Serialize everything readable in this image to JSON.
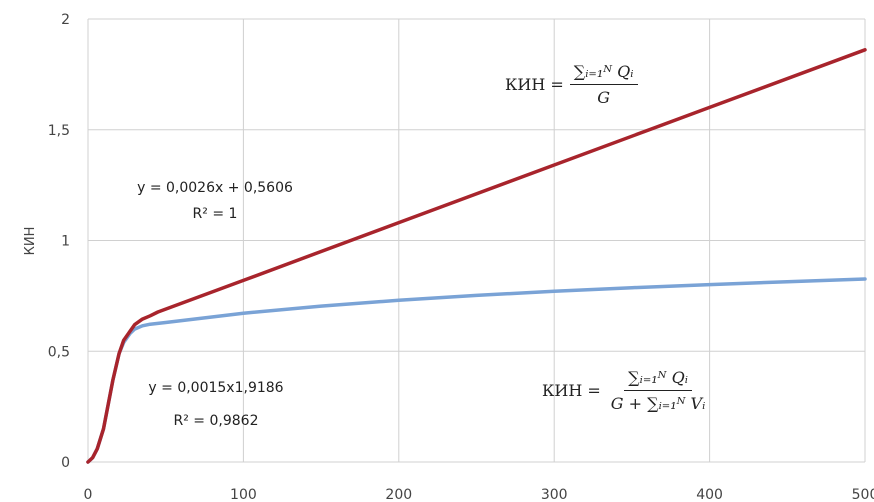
{
  "chart_data": {
    "type": "line",
    "ylabel": "КИН",
    "xlabel": "",
    "xlim": [
      0,
      500
    ],
    "ylim": [
      0,
      2
    ],
    "x_ticks": [
      "0",
      "100",
      "200",
      "300",
      "400",
      "500"
    ],
    "y_ticks": [
      "0",
      "0,5",
      "1",
      "1,5",
      "2"
    ],
    "grid": true,
    "series": [
      {
        "color": "#a8242c",
        "x": [
          0,
          3,
          6,
          10,
          13,
          16,
          20,
          23,
          27,
          30,
          35,
          40,
          45,
          100,
          200,
          300,
          400,
          500
        ],
        "y": [
          0,
          0.02,
          0.06,
          0.15,
          0.26,
          0.37,
          0.49,
          0.55,
          0.59,
          0.62,
          0.645,
          0.66,
          0.677,
          0.82,
          1.081,
          1.341,
          1.601,
          1.861
        ]
      },
      {
        "color": "#7aa3d6",
        "x": [
          0,
          3,
          6,
          10,
          13,
          16,
          20,
          23,
          27,
          30,
          35,
          40,
          50,
          100,
          150,
          200,
          250,
          300,
          350,
          400,
          450,
          500
        ],
        "y": [
          0,
          0.02,
          0.06,
          0.15,
          0.26,
          0.37,
          0.49,
          0.54,
          0.58,
          0.6,
          0.615,
          0.622,
          0.63,
          0.672,
          0.704,
          0.73,
          0.752,
          0.771,
          0.787,
          0.801,
          0.814,
          0.826
        ]
      }
    ],
    "annotations": {
      "linear_eq": "y = 0,0026x + 0,5606",
      "linear_r2": "R² = 1",
      "power_eq": "y = 0,0015x1,9186",
      "power_r2": "R² = 0,9862"
    },
    "formulas": {
      "top": {
        "lhs": "КИН =",
        "num": "∑ᵢ₌₁ᴺ Qᵢ",
        "den": "G"
      },
      "bottom": {
        "lhs": "КИН =",
        "num": "∑ᵢ₌₁ᴺ Qᵢ",
        "den": "G + ∑ᵢ₌₁ᴺ Vᵢ"
      }
    }
  }
}
